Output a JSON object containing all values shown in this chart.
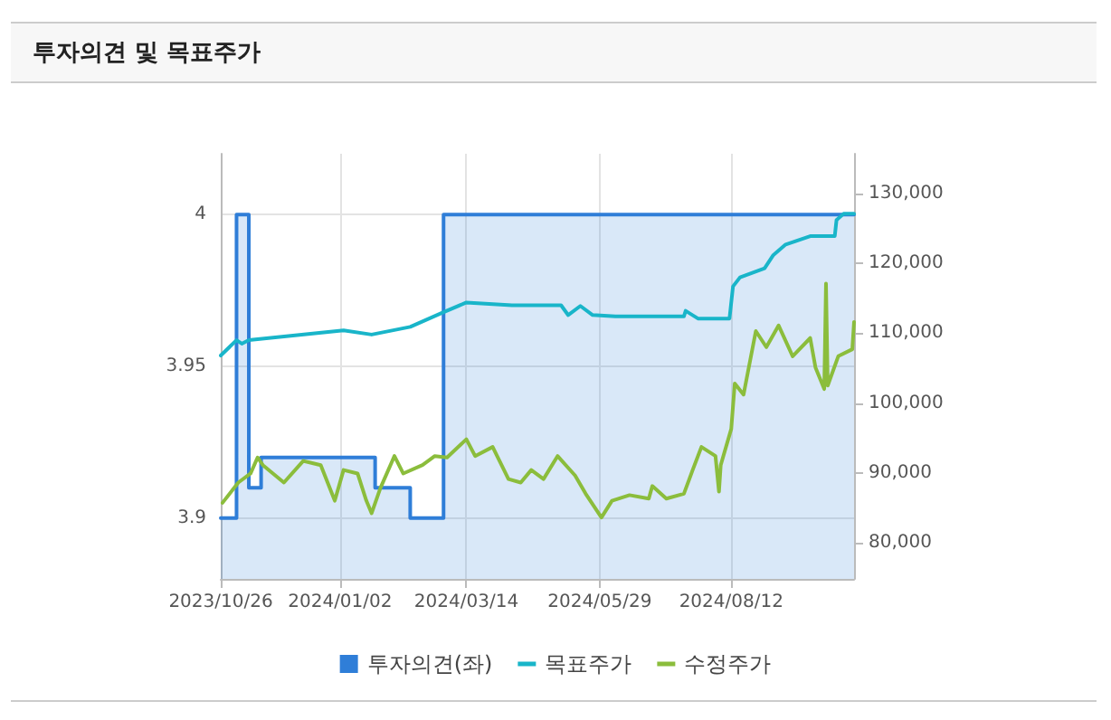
{
  "chart_data": {
    "type": "line",
    "title": "투자의견 및 목표주가",
    "xlim": [
      "2023-10-26",
      "2024-10-21"
    ],
    "xticks": [
      {
        "value": "2023-10-26",
        "label": "2023/10/26"
      },
      {
        "value": "2024-01-02",
        "label": "2024/01/02"
      },
      {
        "value": "2024-03-14",
        "label": "2024/03/14"
      },
      {
        "value": "2024-05-29",
        "label": "2024/05/29"
      },
      {
        "value": "2024-08-12",
        "label": "2024/08/12"
      }
    ],
    "ylim": [
      3.88,
      4.02
    ],
    "yticks": [
      3.9,
      3.95,
      4
    ],
    "y2lim": [
      74800,
      135700
    ],
    "y2ticks": [
      {
        "value": 80000,
        "label": "80,000"
      },
      {
        "value": 90000,
        "label": "90,000"
      },
      {
        "value": 100000,
        "label": "100,000"
      },
      {
        "value": 110000,
        "label": "110,000"
      },
      {
        "value": 120000,
        "label": "120,000"
      },
      {
        "value": 130000,
        "label": "130,000"
      }
    ],
    "grid": true,
    "legend": "bottom",
    "marker": "none",
    "line_style": "solid",
    "series": [
      {
        "name": "투자의견(좌)",
        "type": "area",
        "color": "#2f7ed8",
        "x": [
          "2023-10-26",
          "2023-11-04",
          "2023-11-04",
          "2023-11-11",
          "2023-11-11",
          "2023-11-18",
          "2023-11-18",
          "2024-01-22",
          "2024-01-22",
          "2024-02-11",
          "2024-02-11",
          "2024-03-01",
          "2024-03-01",
          "2024-10-21"
        ],
        "values": [
          3.9,
          3.9,
          4,
          4,
          3.91,
          3.91,
          3.92,
          3.92,
          3.91,
          3.91,
          3.9,
          3.9,
          4,
          4
        ]
      },
      {
        "name": "목표주가",
        "axis": "y2",
        "color": "#19b5c9",
        "x": [
          "2023-10-26",
          "2023-11-04",
          "2023-11-07",
          "2023-11-11",
          "2024-01-04",
          "2024-01-20",
          "2024-02-11",
          "2024-03-01",
          "2024-03-14",
          "2024-04-09",
          "2024-05-07",
          "2024-05-11",
          "2024-05-18",
          "2024-05-25",
          "2024-06-07",
          "2024-07-16",
          "2024-07-17",
          "2024-07-24",
          "2024-08-11",
          "2024-08-13",
          "2024-08-17",
          "2024-08-31",
          "2024-09-05",
          "2024-09-12",
          "2024-09-26",
          "2024-10-10",
          "2024-10-11",
          "2024-10-15",
          "2024-10-21"
        ],
        "values": [
          106800,
          109000,
          108500,
          109000,
          110400,
          109800,
          110900,
          113000,
          114400,
          114000,
          114000,
          112600,
          113900,
          112600,
          112400,
          112400,
          113200,
          112100,
          112100,
          116700,
          118000,
          119300,
          121200,
          122700,
          123900,
          123900,
          126200,
          127100,
          127100
        ]
      },
      {
        "name": "수정주가",
        "axis": "y2",
        "color": "#8bbd3c",
        "x": [
          "2023-10-27",
          "2023-11-05",
          "2023-11-12",
          "2023-11-16",
          "2023-11-19",
          "2023-12-01",
          "2023-12-12",
          "2023-12-22",
          "2023-12-30",
          "2024-01-04",
          "2024-01-12",
          "2024-01-17",
          "2024-01-20",
          "2024-01-25",
          "2024-02-02",
          "2024-02-07",
          "2024-02-18",
          "2024-02-25",
          "2024-03-03",
          "2024-03-14",
          "2024-03-19",
          "2024-03-29",
          "2024-04-07",
          "2024-04-14",
          "2024-04-20",
          "2024-04-27",
          "2024-05-05",
          "2024-05-15",
          "2024-05-21",
          "2024-05-30",
          "2024-06-05",
          "2024-06-15",
          "2024-06-26",
          "2024-06-28",
          "2024-07-06",
          "2024-07-16",
          "2024-07-21",
          "2024-07-26",
          "2024-08-03",
          "2024-08-05",
          "2024-08-06",
          "2024-08-12",
          "2024-08-14",
          "2024-08-19",
          "2024-08-26",
          "2024-09-01",
          "2024-09-08",
          "2024-09-16",
          "2024-09-26",
          "2024-09-29",
          "2024-10-04",
          "2024-10-05",
          "2024-10-06",
          "2024-10-12",
          "2024-10-20",
          "2024-10-21"
        ],
        "values": [
          85700,
          88600,
          89900,
          92200,
          91100,
          88600,
          91700,
          91100,
          86000,
          90400,
          89900,
          86000,
          84200,
          87800,
          92400,
          89900,
          91100,
          92400,
          92200,
          94800,
          92400,
          93700,
          89100,
          88600,
          90400,
          89100,
          92400,
          89600,
          87000,
          83600,
          86000,
          86800,
          86300,
          88100,
          86300,
          87000,
          90400,
          93700,
          92400,
          87300,
          91100,
          96300,
          102800,
          101200,
          110300,
          108000,
          111100,
          106700,
          109300,
          105100,
          102000,
          117100,
          102500,
          106700,
          107700,
          111600
        ]
      }
    ]
  }
}
